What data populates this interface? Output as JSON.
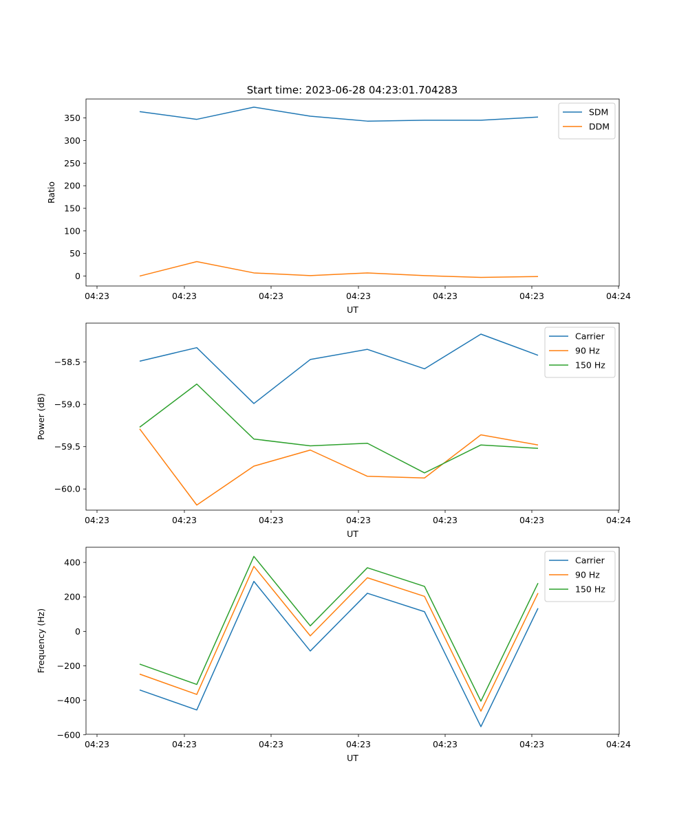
{
  "figure": {
    "title": "Start time: 2023-06-28 04:23:01.704283"
  },
  "chart_data": [
    {
      "type": "line",
      "title": "Start time: 2023-06-28 04:23:01.704283",
      "xlabel": "UT",
      "ylabel": "Ratio",
      "xticklabels": [
        "04:23",
        "04:23",
        "04:23",
        "04:23",
        "04:23",
        "04:23",
        "04:24"
      ],
      "ylim": [
        -22,
        392
      ],
      "yticks": [
        0,
        50,
        100,
        150,
        200,
        250,
        300,
        350
      ],
      "yticklabels": [
        "0",
        "50",
        "100",
        "150",
        "200",
        "250",
        "300",
        "350"
      ],
      "grid": false,
      "legend": "top-right",
      "series": [
        {
          "name": "SDM",
          "color": "#1f77b4",
          "values": [
            364,
            347,
            374,
            354,
            343,
            345,
            345,
            352
          ]
        },
        {
          "name": "DDM",
          "color": "#ff7f0e",
          "values": [
            0,
            32,
            7,
            1,
            7,
            1,
            -3,
            -1
          ]
        }
      ]
    },
    {
      "type": "line",
      "xlabel": "UT",
      "ylabel": "Power (dB)",
      "xticklabels": [
        "04:23",
        "04:23",
        "04:23",
        "04:23",
        "04:23",
        "04:23",
        "04:24"
      ],
      "ylim": [
        -60.25,
        -58.04
      ],
      "yticks": [
        -60.0,
        -59.5,
        -59.0,
        -58.5
      ],
      "yticklabels": [
        "−60.0",
        "−59.5",
        "−59.0",
        "−58.5"
      ],
      "grid": false,
      "legend": "top-right",
      "series": [
        {
          "name": "Carrier",
          "color": "#1f77b4",
          "values": [
            -58.49,
            -58.33,
            -58.99,
            -58.47,
            -58.35,
            -58.58,
            -58.17,
            -58.42
          ]
        },
        {
          "name": "90 Hz",
          "color": "#ff7f0e",
          "values": [
            -59.29,
            -60.19,
            -59.73,
            -59.54,
            -59.85,
            -59.87,
            -59.36,
            -59.48
          ]
        },
        {
          "name": "150 Hz",
          "color": "#2ca02c",
          "values": [
            -59.27,
            -58.76,
            -59.41,
            -59.49,
            -59.46,
            -59.81,
            -59.48,
            -59.52
          ]
        }
      ]
    },
    {
      "type": "line",
      "xlabel": "UT",
      "ylabel": "Frequency (Hz)",
      "xticklabels": [
        "04:23",
        "04:23",
        "04:23",
        "04:23",
        "04:23",
        "04:23",
        "04:24"
      ],
      "ylim": [
        -597,
        488
      ],
      "yticks": [
        -600,
        -400,
        -200,
        0,
        200,
        400
      ],
      "yticklabels": [
        "−600",
        "−400",
        "−200",
        "0",
        "200",
        "400"
      ],
      "grid": false,
      "legend": "top-right",
      "series": [
        {
          "name": "Carrier",
          "color": "#1f77b4",
          "values": [
            -340,
            -456,
            290,
            -114,
            221,
            114,
            -553,
            134
          ]
        },
        {
          "name": "90 Hz",
          "color": "#ff7f0e",
          "values": [
            -248,
            -366,
            377,
            -26,
            311,
            203,
            -463,
            222
          ]
        },
        {
          "name": "150 Hz",
          "color": "#2ca02c",
          "values": [
            -190,
            -308,
            435,
            32,
            369,
            261,
            -405,
            280
          ]
        }
      ]
    }
  ]
}
